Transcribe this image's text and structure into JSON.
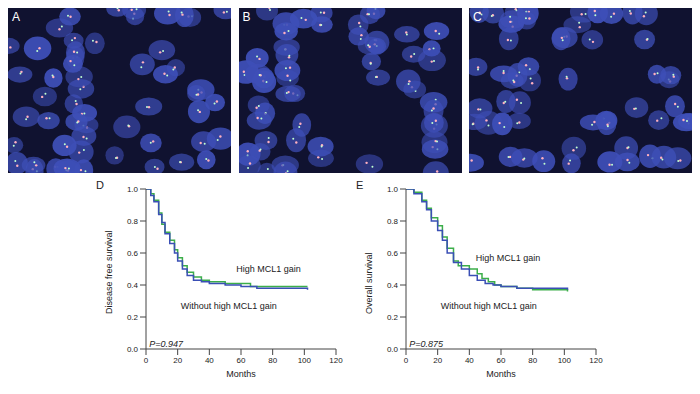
{
  "panels": [
    {
      "label": "A"
    },
    {
      "label": "B"
    },
    {
      "label": "C"
    }
  ],
  "chart_data": [
    {
      "type": "line",
      "title": "D",
      "annotations": [
        "P=0.947"
      ],
      "x_label": "Months",
      "y_label": "Disease free survival",
      "line_style": "step",
      "xlim": [
        0,
        120
      ],
      "xticks": [
        0,
        20,
        40,
        60,
        80,
        100,
        120
      ],
      "ylim": [
        0,
        1
      ],
      "yticks": [
        {
          "value": 0,
          "label": "0.0"
        },
        {
          "value": 0.2,
          "label": "0.2"
        },
        {
          "value": 0.4,
          "label": "0.4"
        },
        {
          "value": 0.6,
          "label": "0.6"
        },
        {
          "value": 0.8,
          "label": "0.8"
        },
        {
          "value": 1,
          "label": "1.0"
        }
      ],
      "series": [
        {
          "name": "High MCL1 gain",
          "color": "#3cae4a",
          "x": [
            0,
            3,
            5,
            8,
            10,
            12,
            15,
            18,
            20,
            23,
            26,
            30,
            35,
            40,
            50,
            60,
            66,
            80,
            102
          ],
          "values": [
            1.0,
            0.97,
            0.93,
            0.85,
            0.78,
            0.73,
            0.68,
            0.62,
            0.57,
            0.52,
            0.48,
            0.45,
            0.43,
            0.42,
            0.41,
            0.41,
            0.39,
            0.39,
            0.39
          ]
        },
        {
          "name": "Without high MCL1 gain",
          "color": "#3a4fb5",
          "x": [
            0,
            3,
            5,
            8,
            10,
            12,
            15,
            18,
            20,
            23,
            26,
            30,
            35,
            40,
            50,
            60,
            70,
            80,
            102
          ],
          "values": [
            1.0,
            0.96,
            0.92,
            0.84,
            0.79,
            0.72,
            0.66,
            0.6,
            0.55,
            0.5,
            0.46,
            0.43,
            0.42,
            0.41,
            0.4,
            0.39,
            0.38,
            0.38,
            0.37
          ]
        }
      ]
    },
    {
      "type": "line",
      "title": "E",
      "annotations": [
        "P=0.875"
      ],
      "x_label": "Months",
      "y_label": "Overall survival",
      "line_style": "step",
      "xlim": [
        0,
        120
      ],
      "xticks": [
        0,
        20,
        40,
        60,
        80,
        100,
        120
      ],
      "ylim": [
        0,
        1
      ],
      "yticks": [
        {
          "value": 0,
          "label": "0.0"
        },
        {
          "value": 0.2,
          "label": "0.2"
        },
        {
          "value": 0.4,
          "label": "0.4"
        },
        {
          "value": 0.6,
          "label": "0.6"
        },
        {
          "value": 0.8,
          "label": "0.8"
        },
        {
          "value": 1,
          "label": "1.0"
        }
      ],
      "series": [
        {
          "name": "High MCL1 gain",
          "color": "#3cae4a",
          "x": [
            0,
            5,
            10,
            13,
            16,
            20,
            23,
            26,
            30,
            33,
            40,
            45,
            48,
            52,
            56,
            60,
            70,
            80,
            102
          ],
          "values": [
            1.0,
            0.98,
            0.93,
            0.88,
            0.82,
            0.77,
            0.7,
            0.63,
            0.55,
            0.52,
            0.5,
            0.47,
            0.44,
            0.42,
            0.4,
            0.39,
            0.38,
            0.37,
            0.36
          ]
        },
        {
          "name": "Without high MCL1 gain",
          "color": "#3a4fb5",
          "x": [
            0,
            5,
            10,
            13,
            16,
            20,
            23,
            26,
            30,
            35,
            40,
            45,
            50,
            55,
            60,
            70,
            80,
            102
          ],
          "values": [
            1.0,
            0.97,
            0.92,
            0.87,
            0.8,
            0.74,
            0.68,
            0.6,
            0.54,
            0.5,
            0.46,
            0.43,
            0.41,
            0.4,
            0.39,
            0.38,
            0.38,
            0.37
          ]
        }
      ]
    }
  ]
}
